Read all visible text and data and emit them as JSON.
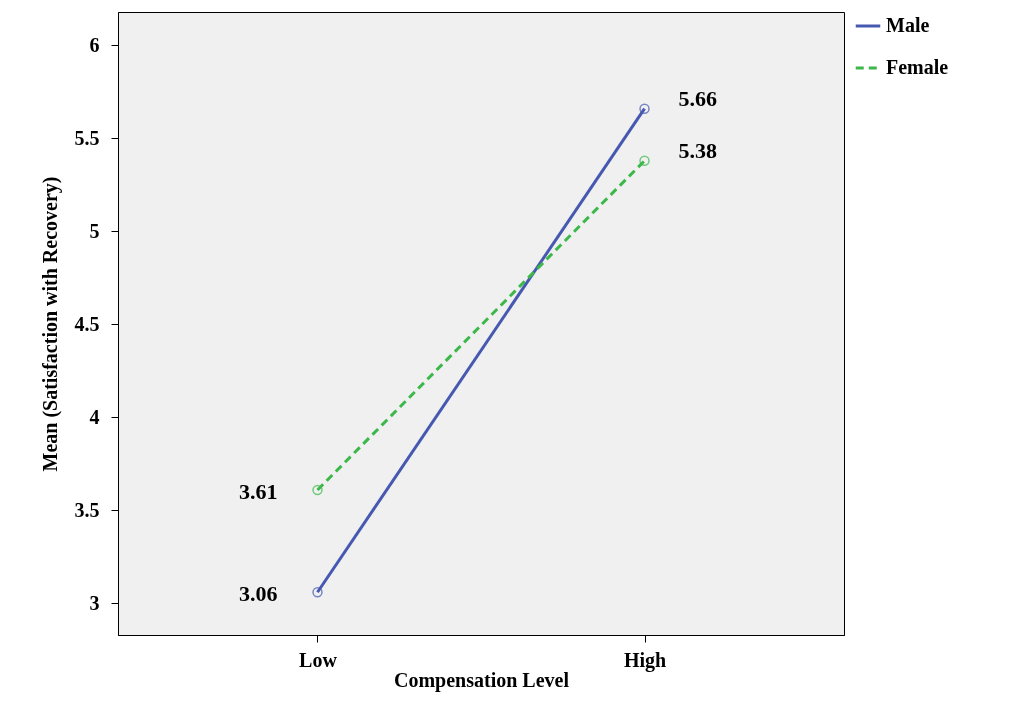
{
  "chart_data": {
    "type": "line",
    "xlabel": "Compensation Level",
    "ylabel": "Mean (Satisfaction with Recovery)",
    "categories": [
      "Low",
      "High"
    ],
    "series": [
      {
        "name": "Male",
        "color": "#4658b0",
        "values": [
          3.06,
          5.66
        ],
        "line_style": "solid"
      },
      {
        "name": "Female",
        "color": "#3cb84a",
        "values": [
          3.61,
          5.38
        ],
        "line_style": "dashed"
      }
    ],
    "ylim": [
      2.83,
      6.18
    ],
    "yticks": [
      3,
      3.5,
      4,
      4.5,
      5,
      5.5,
      6
    ],
    "marker": "circle",
    "data_labels": true,
    "grid": false,
    "legend": "top right"
  }
}
